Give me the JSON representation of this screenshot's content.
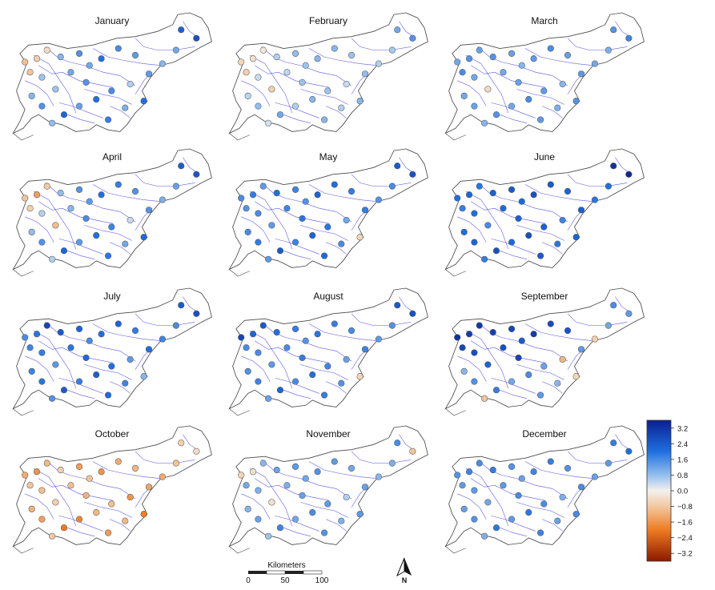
{
  "figure": {
    "months": [
      "January",
      "February",
      "March",
      "April",
      "May",
      "June",
      "July",
      "August",
      "September",
      "October",
      "November",
      "December"
    ]
  },
  "colorbar": {
    "ticks": [
      "3.2",
      "2.4",
      "1.6",
      "0.8",
      "0.0",
      "−0.8",
      "−1.6",
      "−2.4",
      "−3.2"
    ],
    "min": -3.6,
    "max": 3.6,
    "colors": {
      "dark_blue": "#0a1f8f",
      "blue": "#1f6fe0",
      "light_blue": "#9cc4ee",
      "neutral": "#f4f0ee",
      "light_orange": "#f2c49a",
      "orange": "#ee7a22",
      "dark_red": "#8b1a00"
    }
  },
  "scale_bar": {
    "title": "Kilometers",
    "labels": [
      "0",
      "50",
      "100"
    ]
  },
  "north_arrow": {
    "label": "N"
  },
  "colors": {
    "outline": "#4a4a4a",
    "rivers": "#2424e0",
    "marker_edge": "#555555"
  },
  "stations_by_month": {
    "January": [
      -0.9,
      -0.6,
      -0.8,
      -0.4,
      1.0,
      0.8,
      1.5,
      1.2,
      2.0,
      1.6,
      1.4,
      0.8,
      1.2,
      1.5,
      2.3,
      2.6,
      1.2,
      1.0,
      1.4,
      0.6,
      1.6,
      2.0,
      1.3,
      2.2,
      1.5,
      1.0,
      0.9,
      1.8,
      1.1,
      2.0
    ],
    "February": [
      -0.5,
      -0.3,
      -0.6,
      -0.2,
      0.6,
      0.4,
      0.9,
      0.8,
      1.0,
      1.0,
      0.8,
      -0.6,
      0.5,
      0.8,
      1.2,
      1.5,
      0.7,
      0.6,
      0.9,
      0.4,
      0.8,
      1.0,
      0.6,
      1.2,
      0.9,
      0.5,
      0.3,
      1.0,
      0.6,
      1.0
    ],
    "March": [
      1.2,
      1.5,
      1.6,
      1.3,
      1.5,
      1.2,
      1.3,
      1.0,
      1.4,
      1.6,
      1.3,
      -0.4,
      1.2,
      1.3,
      1.5,
      1.7,
      1.1,
      1.2,
      1.4,
      1.0,
      1.4,
      1.6,
      1.2,
      1.5,
      1.3,
      1.2,
      1.0,
      1.4,
      1.1,
      1.5
    ],
    "April": [
      -0.8,
      -1.4,
      -0.6,
      -0.7,
      0.9,
      0.6,
      1.5,
      1.4,
      2.0,
      1.8,
      1.5,
      -0.9,
      1.0,
      1.6,
      2.3,
      2.5,
      1.3,
      1.1,
      1.5,
      0.4,
      1.7,
      2.0,
      1.4,
      2.2,
      1.5,
      0.9,
      0.6,
      1.9,
      1.2,
      2.1
    ],
    "May": [
      1.6,
      1.8,
      1.5,
      1.4,
      2.0,
      1.6,
      1.7,
      1.5,
      2.2,
      2.0,
      1.8,
      1.4,
      1.7,
      1.9,
      2.4,
      2.6,
      1.6,
      1.5,
      1.8,
      1.2,
      1.9,
      2.2,
      1.7,
      2.4,
      1.8,
      1.6,
      1.4,
      2.1,
      1.6,
      -0.5
    ],
    "June": [
      2.0,
      2.2,
      1.8,
      1.9,
      2.3,
      2.0,
      2.4,
      2.1,
      2.6,
      2.4,
      2.2,
      1.6,
      2.1,
      2.3,
      3.2,
      3.4,
      2.0,
      1.9,
      2.3,
      1.7,
      2.3,
      2.6,
      2.1,
      2.6,
      2.2,
      2.0,
      1.8,
      2.4,
      1.9,
      2.2
    ],
    "July": [
      1.6,
      1.9,
      1.7,
      2.8,
      2.4,
      1.8,
      2.2,
      1.6,
      2.0,
      2.2,
      1.8,
      1.4,
      1.9,
      2.1,
      2.4,
      2.6,
      1.6,
      1.7,
      2.0,
      1.4,
      2.0,
      2.3,
      1.8,
      2.4,
      1.9,
      1.7,
      1.5,
      2.1,
      1.7,
      1.0
    ],
    "August": [
      2.8,
      2.2,
      1.6,
      2.4,
      2.0,
      1.6,
      1.8,
      1.5,
      1.9,
      1.8,
      1.6,
      1.4,
      1.6,
      1.8,
      2.4,
      2.6,
      1.5,
      1.4,
      1.7,
      1.3,
      1.7,
      2.0,
      1.6,
      2.2,
      1.7,
      1.5,
      1.3,
      1.8,
      1.5,
      -0.5
    ],
    "September": [
      3.2,
      3.0,
      2.8,
      3.1,
      2.9,
      2.6,
      2.8,
      2.4,
      3.0,
      2.7,
      2.5,
      2.2,
      2.6,
      2.8,
      1.6,
      1.4,
      1.2,
      -0.6,
      1.4,
      -1.0,
      1.3,
      1.6,
      1.2,
      1.8,
      1.5,
      1.0,
      -0.8,
      1.4,
      1.0,
      -0.5
    ],
    "October": [
      -1.2,
      -1.6,
      -0.8,
      -1.0,
      -0.6,
      -0.9,
      -1.4,
      -0.8,
      -1.6,
      -1.2,
      -1.0,
      -0.6,
      -0.9,
      -1.1,
      -0.6,
      -0.4,
      -0.8,
      -1.2,
      -1.3,
      -1.6,
      -0.9,
      -1.0,
      -1.8,
      -2.0,
      -1.4,
      -1.1,
      -0.7,
      -1.5,
      -1.0,
      -1.9
    ],
    "November": [
      -0.5,
      -0.3,
      1.2,
      1.0,
      1.3,
      1.1,
      1.4,
      1.2,
      1.5,
      1.4,
      1.2,
      -0.3,
      1.1,
      1.3,
      1.6,
      -0.8,
      1.1,
      1.0,
      1.3,
      0.6,
      1.4,
      1.6,
      1.2,
      1.7,
      1.3,
      1.0,
      0.8,
      1.5,
      1.1,
      1.4
    ],
    "December": [
      1.5,
      1.7,
      1.4,
      1.6,
      1.8,
      1.4,
      1.5,
      1.3,
      1.7,
      1.8,
      1.5,
      1.2,
      1.4,
      1.6,
      1.8,
      2.0,
      1.4,
      1.3,
      1.6,
      1.1,
      1.6,
      1.9,
      1.4,
      1.9,
      1.5,
      1.3,
      1.1,
      1.7,
      1.3,
      1.6
    ]
  }
}
